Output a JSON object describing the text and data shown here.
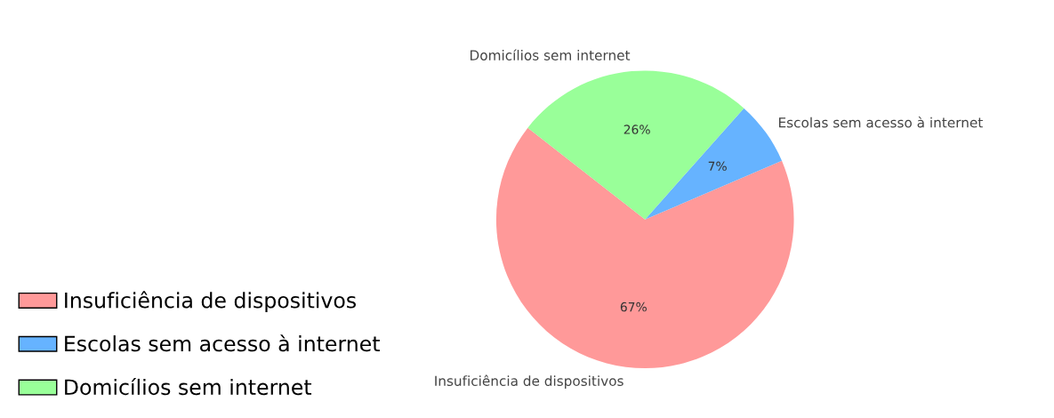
{
  "chart_data": {
    "type": "pie",
    "categories": [
      "Insuficiência de dispositivos",
      "Escolas sem acesso à internet",
      "Domicílios sem internet"
    ],
    "values": [
      67,
      7,
      26
    ],
    "value_labels": [
      "67%",
      "7%",
      "26%"
    ],
    "colors": [
      "#ff9999",
      "#66b3ff",
      "#99ff99"
    ],
    "legend": "bottom left"
  }
}
